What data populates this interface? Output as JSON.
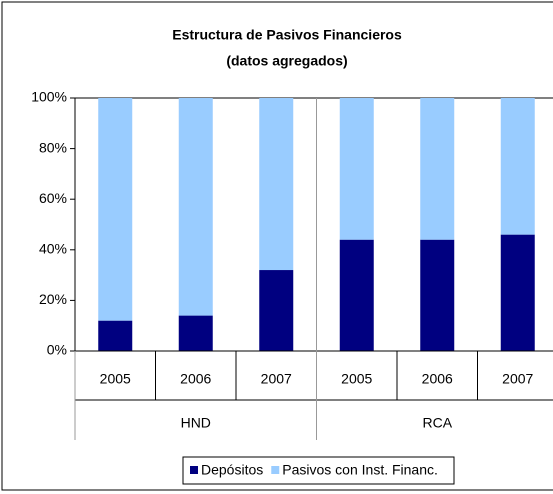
{
  "chart_data": {
    "type": "stacked_bar",
    "title": "Estructura de Pasivos Financieros",
    "subtitle": "(datos agregados)",
    "categories": [
      "2005",
      "2006",
      "2007",
      "2005",
      "2006",
      "2007"
    ],
    "groups": [
      "HND",
      "RCA"
    ],
    "series": [
      {
        "name": "Depósitos",
        "color": "#000080",
        "values": [
          12,
          14,
          32,
          44,
          44,
          46
        ]
      },
      {
        "name": "Pasivos con Inst. Financ.",
        "color": "#99ccff",
        "values": [
          88,
          86,
          68,
          56,
          56,
          54
        ]
      }
    ],
    "ylim": [
      0,
      100
    ],
    "yticks": [
      {
        "value": 0,
        "label": "0%"
      },
      {
        "value": 20,
        "label": "20%"
      },
      {
        "value": 40,
        "label": "40%"
      },
      {
        "value": 60,
        "label": "60%"
      },
      {
        "value": 80,
        "label": "80%"
      },
      {
        "value": 100,
        "label": "100%"
      }
    ]
  }
}
